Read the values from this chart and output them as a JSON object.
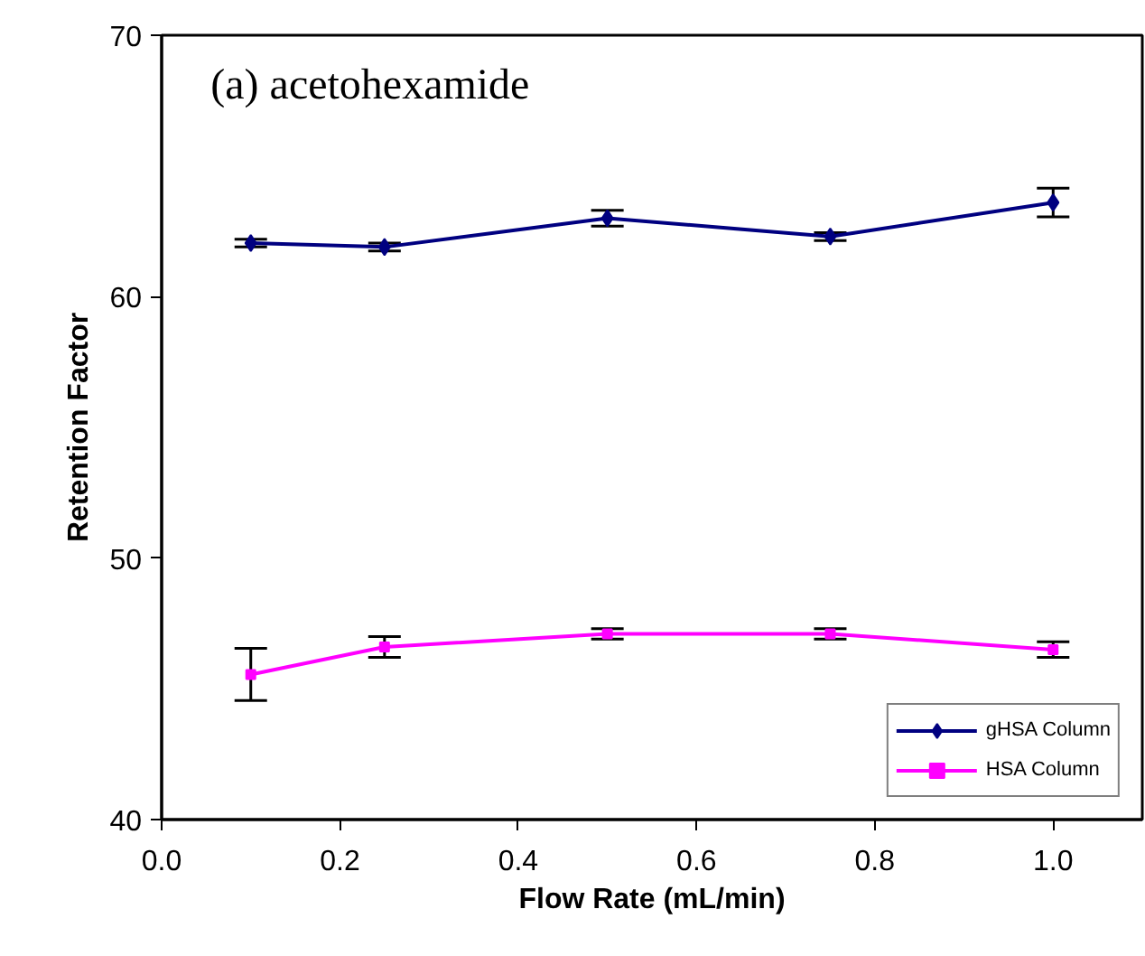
{
  "chart_data": {
    "type": "line",
    "title": "(a) acetohexamide",
    "xlabel": "Flow Rate (mL/min)",
    "ylabel": "Retention Factor",
    "x": [
      0.1,
      0.25,
      0.5,
      0.75,
      1.0
    ],
    "series": [
      {
        "name": "gHSA Column",
        "color": "#000080",
        "marker": "diamond",
        "values": [
          62.05,
          61.9,
          63.0,
          62.3,
          63.6
        ],
        "errors": [
          0.15,
          0.15,
          0.3,
          0.15,
          0.55
        ]
      },
      {
        "name": "HSA Column",
        "color": "#ff00ff",
        "marker": "square",
        "values": [
          45.55,
          46.6,
          47.1,
          47.1,
          46.5
        ],
        "errors": [
          1.0,
          0.4,
          0.2,
          0.2,
          0.3
        ]
      }
    ],
    "xlim": [
      0,
      1.1
    ],
    "ylim": [
      40,
      70
    ],
    "xticks": [
      {
        "value": 0,
        "label": "0.0"
      },
      0.2,
      0.4,
      0.6,
      0.8,
      {
        "value": 1.0,
        "label": "1.0"
      }
    ],
    "yticks": [
      40,
      50,
      60,
      70
    ],
    "grid": false,
    "legend": "bottom right",
    "line_style": "solid"
  }
}
